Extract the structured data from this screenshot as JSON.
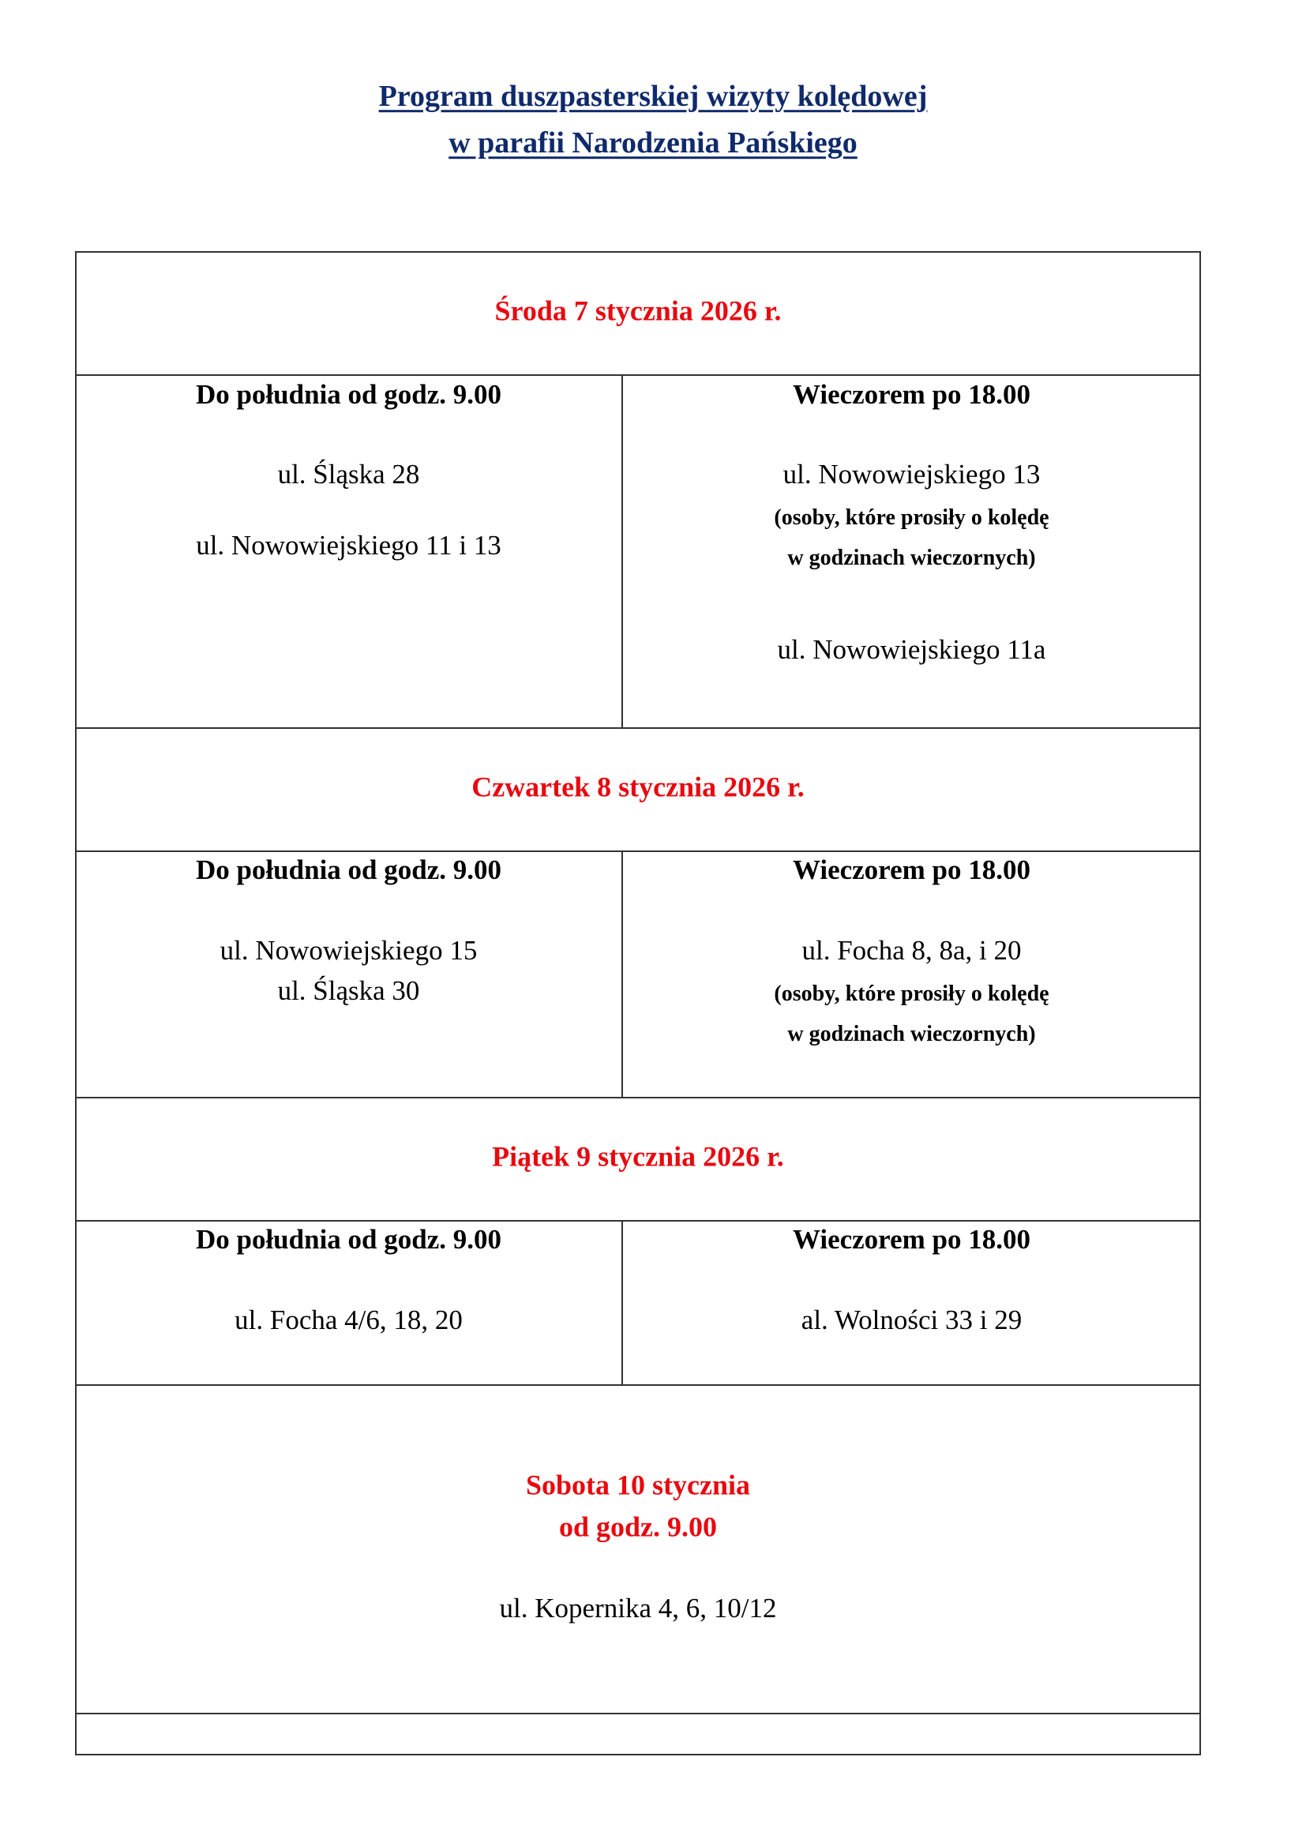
{
  "title": {
    "line1": "Program duszpasterskiej wizyty kolędowej",
    "line2": "w parafii Narodzenia Pańskiego",
    "color": "#0f2a6b"
  },
  "accent_color": "#e8090f",
  "days": [
    {
      "header": "Środa 7 stycznia 2026 r.",
      "morning": {
        "heading": "Do południa od godz. 9.00",
        "lines": [
          "ul. Śląska 28",
          "ul. Nowowiejskiego 11 i 13"
        ]
      },
      "evening": {
        "heading": "Wieczorem po 18.00",
        "lines": [
          "ul. Nowowiejskiego 13",
          "(osoby, które prosiły o kolędę",
          "w godzinach wieczornych)",
          "ul. Nowowiejskiego 11a"
        ]
      }
    },
    {
      "header": "Czwartek 8 stycznia 2026 r.",
      "morning": {
        "heading": "Do południa od godz. 9.00",
        "lines": [
          "ul. Nowowiejskiego 15",
          "ul. Śląska 30"
        ]
      },
      "evening": {
        "heading": "Wieczorem po 18.00",
        "lines": [
          "ul. Focha 8, 8a, i 20",
          "(osoby, które prosiły o kolędę",
          "w godzinach wieczornych)"
        ]
      }
    },
    {
      "header": "Piątek 9 stycznia 2026 r.",
      "morning": {
        "heading": "Do południa od godz. 9.00",
        "lines": [
          "ul. Focha 4/6, 18, 20"
        ]
      },
      "evening": {
        "heading": "Wieczorem po 18.00",
        "lines": [
          "al. Wolności 33 i 29"
        ]
      }
    },
    {
      "header": "Sobota 10 stycznia",
      "subheader": "od godz. 9.00",
      "lines": [
        "ul. Kopernika 4, 6, 10/12"
      ]
    }
  ]
}
